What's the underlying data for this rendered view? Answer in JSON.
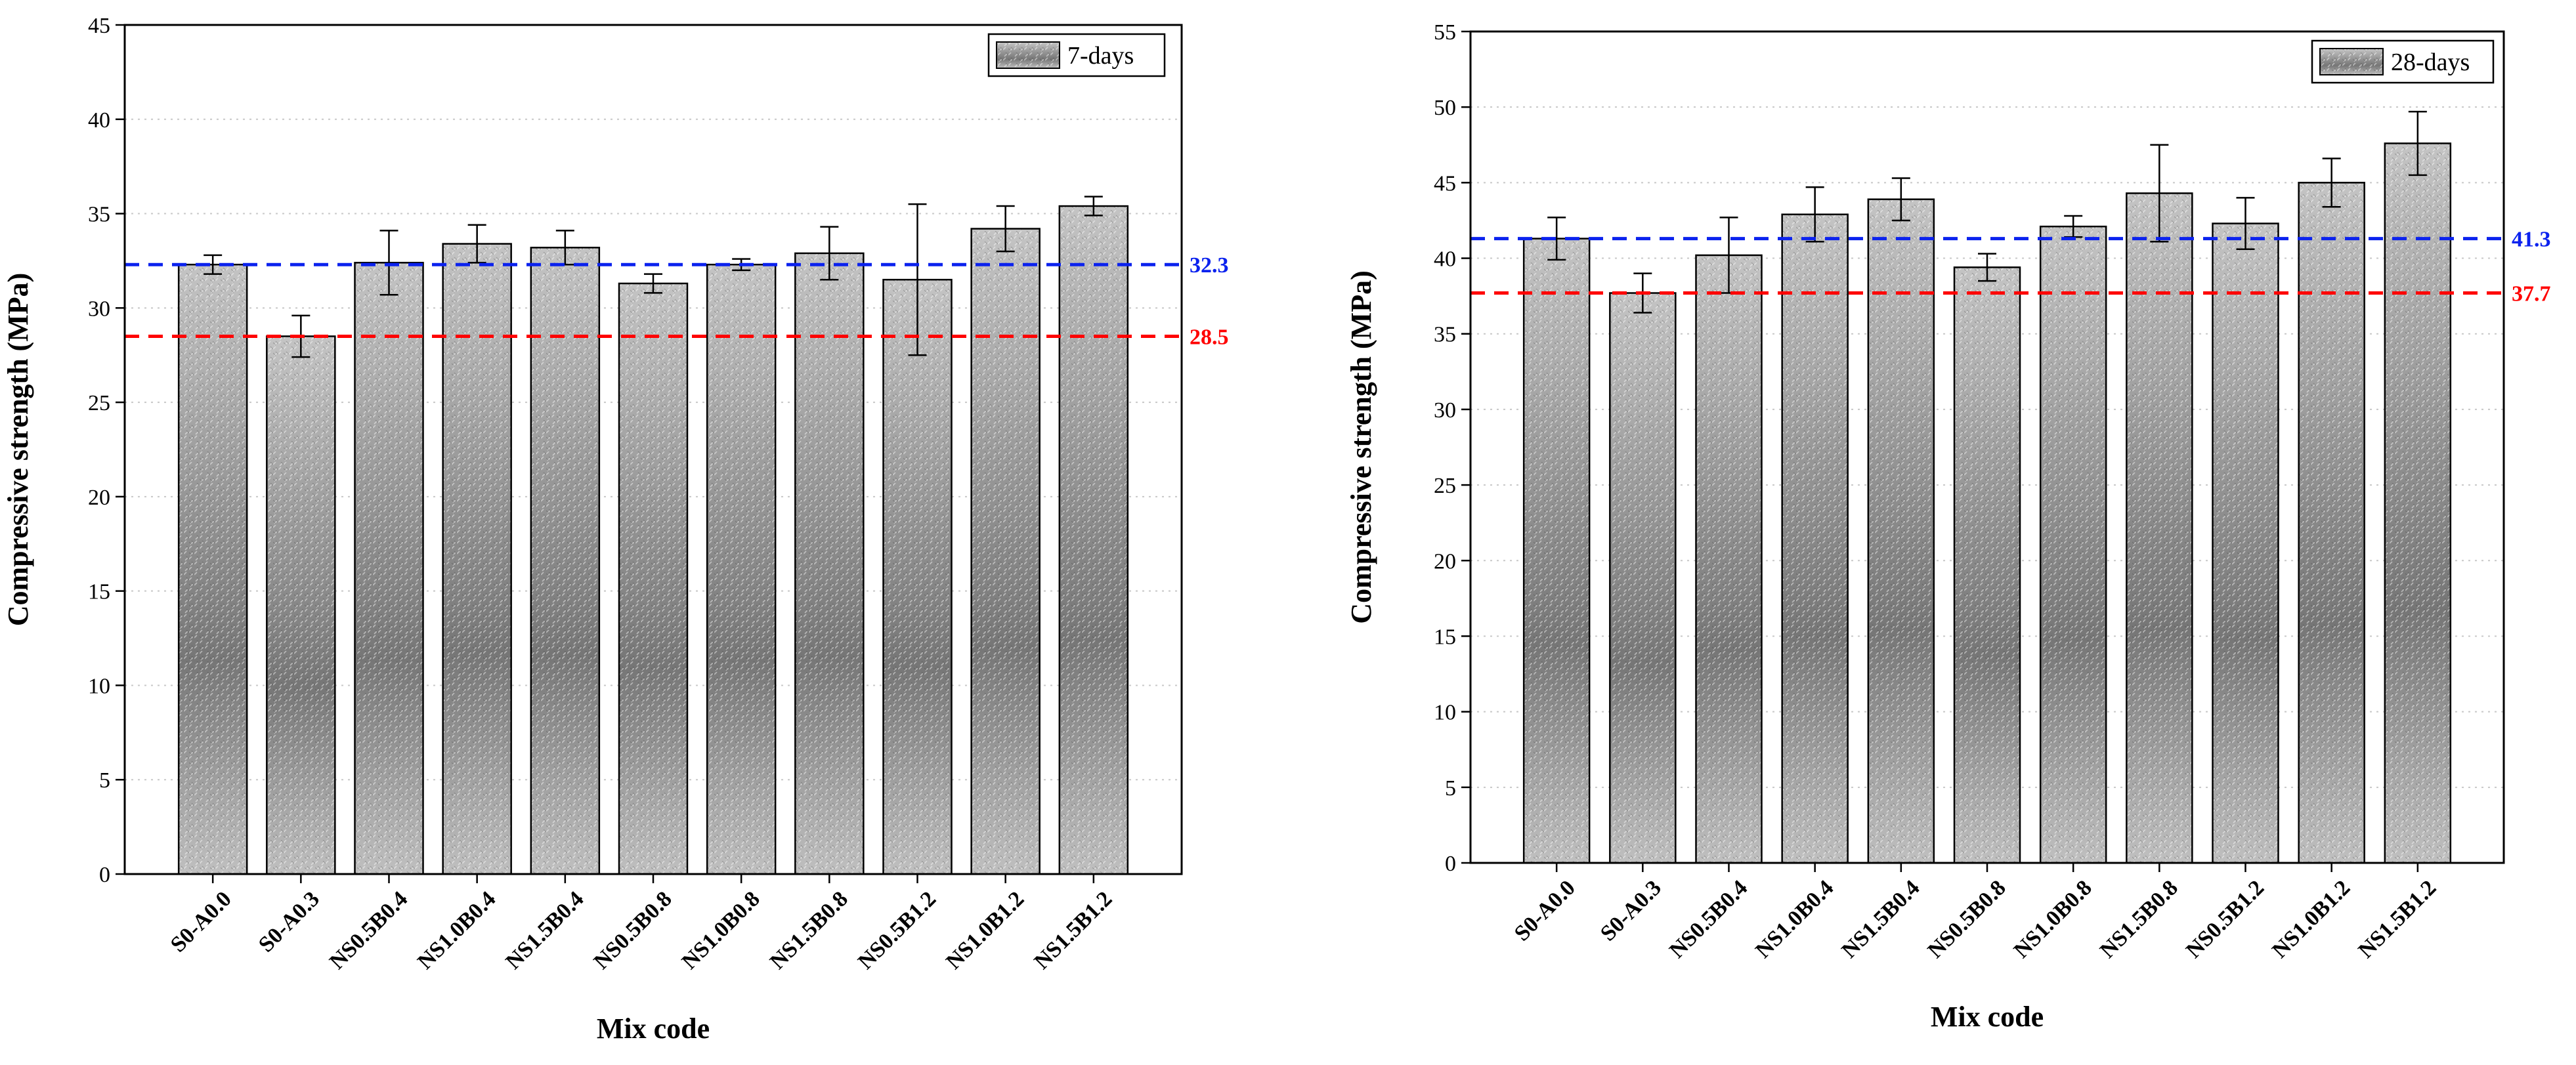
{
  "colors": {
    "bar_fill": "#b4b4b4",
    "bar_fill_dark": "#787878",
    "ref_blue": "#0b22ee",
    "ref_red": "#ff0000",
    "grid": "#c8c8c8"
  },
  "chart_data": [
    {
      "type": "bar",
      "legend": "7-days",
      "xlabel": "Mix code",
      "ylabel": "Compressive strength (MPa)",
      "ylim": [
        0,
        45
      ],
      "yticks": [
        "0",
        "5",
        "10",
        "15",
        "20",
        "25",
        "30",
        "35",
        "40",
        "45"
      ],
      "categories": [
        "S0-A0.0",
        "S0-A0.3",
        "NS0.5B0.4",
        "NS1.0B0.4",
        "NS1.5B0.4",
        "NS0.5B0.8",
        "NS1.0B0.8",
        "NS1.5B0.8",
        "NS0.5B1.2",
        "NS1.0B1.2",
        "NS1.5B1.2"
      ],
      "values": [
        32.3,
        28.5,
        32.4,
        33.4,
        33.2,
        31.3,
        32.3,
        32.9,
        31.5,
        34.2,
        35.4
      ],
      "errors": [
        0.5,
        1.1,
        1.7,
        1.0,
        0.9,
        0.5,
        0.3,
        1.4,
        4.0,
        1.2,
        0.5
      ],
      "reference_lines": [
        {
          "value": 32.3,
          "label": "32.3",
          "color": "blue"
        },
        {
          "value": 28.5,
          "label": "28.5",
          "color": "red"
        }
      ],
      "grid": "horizontal dotted",
      "legend_position": "top-right"
    },
    {
      "type": "bar",
      "legend": "28-days",
      "xlabel": "Mix code",
      "ylabel": "Compressive strength (MPa)",
      "ylim": [
        0,
        55
      ],
      "yticks": [
        "0",
        "5",
        "10",
        "15",
        "20",
        "25",
        "30",
        "35",
        "40",
        "45",
        "50",
        "55"
      ],
      "categories": [
        "S0-A0.0",
        "S0-A0.3",
        "NS0.5B0.4",
        "NS1.0B0.4",
        "NS1.5B0.4",
        "NS0.5B0.8",
        "NS1.0B0.8",
        "NS1.5B0.8",
        "NS0.5B1.2",
        "NS1.0B1.2",
        "NS1.5B1.2"
      ],
      "values": [
        41.3,
        37.7,
        40.2,
        42.9,
        43.9,
        39.4,
        42.1,
        44.3,
        42.3,
        45.0,
        47.6
      ],
      "errors": [
        1.4,
        1.3,
        2.5,
        1.8,
        1.4,
        0.9,
        0.7,
        3.2,
        1.7,
        1.6,
        2.1
      ],
      "reference_lines": [
        {
          "value": 41.3,
          "label": "41.3",
          "color": "blue"
        },
        {
          "value": 37.7,
          "label": "37.7",
          "color": "red"
        }
      ],
      "grid": "horizontal dotted",
      "legend_position": "top-right"
    }
  ]
}
